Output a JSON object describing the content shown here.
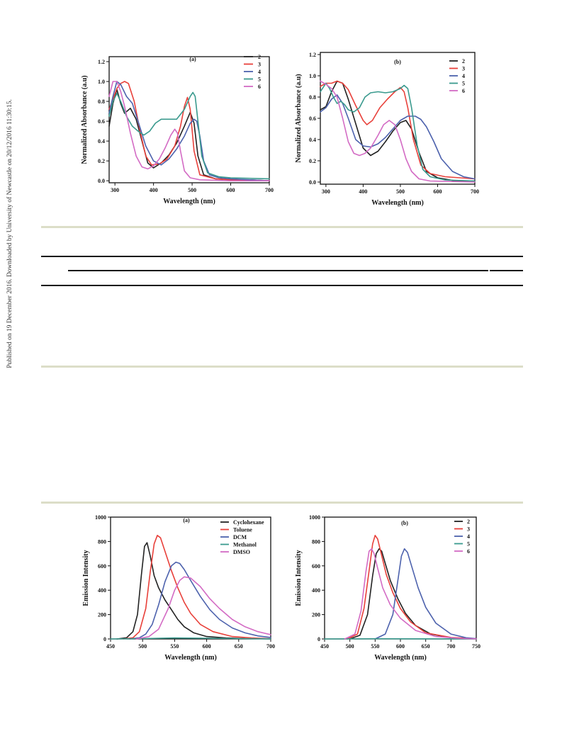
{
  "sidebar_text": "Published on 19 December 2016. Downloaded by University of Newcastle on 20/12/2016 11:30:15.",
  "chart_data": [
    {
      "type": "line",
      "panel_label": "(a)",
      "xlabel": "Wavelength (nm)",
      "ylabel": "Normalized Absorbance (a.u)",
      "xlim": [
        285,
        700
      ],
      "ylim": [
        -0.02,
        1.25
      ],
      "xticks": [
        300,
        400,
        500,
        600,
        700
      ],
      "yticks": [
        0.0,
        0.2,
        0.4,
        0.6,
        0.8,
        1.0,
        1.2
      ],
      "ytick_decimals": 1,
      "legend_position": "top-right",
      "series": [
        {
          "name": "2",
          "color": "#222222",
          "x": [
            285,
            295,
            305,
            315,
            325,
            340,
            355,
            370,
            385,
            400,
            420,
            440,
            460,
            480,
            495,
            505,
            515,
            530,
            560,
            600,
            650,
            700
          ],
          "y": [
            0.55,
            0.78,
            0.92,
            0.78,
            0.68,
            0.73,
            0.62,
            0.4,
            0.18,
            0.13,
            0.18,
            0.26,
            0.38,
            0.55,
            0.69,
            0.58,
            0.25,
            0.06,
            0.02,
            0.01,
            0.01,
            0.0
          ]
        },
        {
          "name": "3",
          "color": "#e8403a",
          "x": [
            285,
            295,
            305,
            315,
            325,
            335,
            350,
            365,
            380,
            395,
            415,
            435,
            455,
            470,
            480,
            488,
            495,
            505,
            520,
            560,
            600,
            700
          ],
          "y": [
            0.72,
            0.82,
            0.93,
            0.98,
            1.0,
            0.98,
            0.8,
            0.5,
            0.25,
            0.16,
            0.17,
            0.22,
            0.35,
            0.55,
            0.75,
            0.84,
            0.72,
            0.3,
            0.06,
            0.02,
            0.01,
            0.0
          ]
        },
        {
          "name": "4",
          "color": "#4d62ad",
          "x": [
            285,
            295,
            305,
            315,
            330,
            345,
            360,
            380,
            400,
            420,
            440,
            460,
            480,
            495,
            505,
            512,
            520,
            530,
            545,
            570,
            600,
            650,
            700
          ],
          "y": [
            0.68,
            0.85,
            1.0,
            0.97,
            0.85,
            0.78,
            0.6,
            0.35,
            0.2,
            0.16,
            0.22,
            0.32,
            0.45,
            0.58,
            0.62,
            0.6,
            0.45,
            0.2,
            0.06,
            0.03,
            0.02,
            0.01,
            0.0
          ]
        },
        {
          "name": "5",
          "color": "#3a9a8e",
          "x": [
            285,
            295,
            305,
            315,
            330,
            345,
            360,
            375,
            390,
            405,
            420,
            440,
            460,
            480,
            495,
            502,
            508,
            515,
            525,
            540,
            570,
            600,
            700
          ],
          "y": [
            0.65,
            0.8,
            0.88,
            0.8,
            0.65,
            0.55,
            0.5,
            0.46,
            0.5,
            0.58,
            0.62,
            0.62,
            0.62,
            0.72,
            0.85,
            0.89,
            0.85,
            0.6,
            0.25,
            0.08,
            0.04,
            0.03,
            0.02
          ]
        },
        {
          "name": "6",
          "color": "#d36bc4",
          "x": [
            285,
            295,
            305,
            315,
            325,
            340,
            355,
            370,
            385,
            400,
            415,
            430,
            445,
            455,
            462,
            470,
            480,
            495,
            520,
            600,
            700
          ],
          "y": [
            0.85,
            1.0,
            1.0,
            0.9,
            0.75,
            0.48,
            0.25,
            0.14,
            0.12,
            0.15,
            0.22,
            0.33,
            0.46,
            0.52,
            0.48,
            0.3,
            0.1,
            0.03,
            0.01,
            0.0,
            0.0
          ]
        }
      ]
    },
    {
      "type": "line",
      "panel_label": "(b)",
      "xlabel": "Wavelength (nm)",
      "ylabel": "Normalized Absorbance (a.u)",
      "xlim": [
        285,
        700
      ],
      "ylim": [
        -0.02,
        1.22
      ],
      "xticks": [
        300,
        400,
        500,
        600,
        700
      ],
      "yticks": [
        0.0,
        0.2,
        0.4,
        0.6,
        0.8,
        1.0,
        1.2
      ],
      "ytick_decimals": 1,
      "legend_position": "top-right",
      "series": [
        {
          "name": "2",
          "color": "#222222",
          "x": [
            285,
            300,
            315,
            330,
            345,
            360,
            380,
            400,
            420,
            440,
            460,
            480,
            500,
            515,
            530,
            550,
            570,
            600,
            650,
            700
          ],
          "y": [
            0.68,
            0.71,
            0.85,
            0.95,
            0.93,
            0.78,
            0.55,
            0.32,
            0.25,
            0.29,
            0.38,
            0.48,
            0.56,
            0.58,
            0.5,
            0.28,
            0.1,
            0.04,
            0.01,
            0.01
          ]
        },
        {
          "name": "3",
          "color": "#e8403a",
          "x": [
            285,
            300,
            315,
            330,
            345,
            360,
            380,
            400,
            410,
            425,
            445,
            465,
            485,
            500,
            510,
            520,
            535,
            555,
            580,
            620,
            700
          ],
          "y": [
            0.9,
            0.93,
            0.93,
            0.95,
            0.93,
            0.87,
            0.72,
            0.58,
            0.54,
            0.58,
            0.7,
            0.78,
            0.85,
            0.89,
            0.85,
            0.7,
            0.4,
            0.16,
            0.08,
            0.05,
            0.03
          ]
        },
        {
          "name": "4",
          "color": "#4d62ad",
          "x": [
            285,
            300,
            315,
            330,
            345,
            360,
            380,
            400,
            420,
            440,
            460,
            480,
            500,
            520,
            540,
            555,
            570,
            590,
            610,
            640,
            670,
            700
          ],
          "y": [
            0.66,
            0.7,
            0.78,
            0.82,
            0.74,
            0.6,
            0.4,
            0.34,
            0.33,
            0.36,
            0.42,
            0.5,
            0.58,
            0.62,
            0.62,
            0.59,
            0.52,
            0.38,
            0.22,
            0.1,
            0.05,
            0.03
          ]
        },
        {
          "name": "5",
          "color": "#3a9a8e",
          "x": [
            285,
            300,
            310,
            320,
            330,
            340,
            350,
            360,
            375,
            390,
            405,
            420,
            440,
            460,
            480,
            500,
            510,
            520,
            530,
            545,
            560,
            580,
            620,
            700
          ],
          "y": [
            0.85,
            0.93,
            0.88,
            0.8,
            0.74,
            0.76,
            0.73,
            0.68,
            0.66,
            0.7,
            0.8,
            0.84,
            0.85,
            0.84,
            0.85,
            0.88,
            0.91,
            0.88,
            0.7,
            0.35,
            0.12,
            0.05,
            0.02,
            0.01
          ]
        },
        {
          "name": "6",
          "color": "#d36bc4",
          "x": [
            285,
            300,
            315,
            330,
            345,
            360,
            375,
            390,
            405,
            420,
            440,
            455,
            470,
            485,
            500,
            515,
            530,
            550,
            580,
            700
          ],
          "y": [
            0.95,
            0.92,
            0.88,
            0.8,
            0.6,
            0.38,
            0.27,
            0.25,
            0.27,
            0.32,
            0.44,
            0.54,
            0.58,
            0.54,
            0.4,
            0.22,
            0.1,
            0.03,
            0.01,
            0.0
          ]
        }
      ]
    },
    {
      "type": "line",
      "panel_label": "(a)",
      "xlabel": "Wavelength (nm)",
      "ylabel": "Emission Intensity",
      "xlim": [
        450,
        700
      ],
      "ylim": [
        0,
        1000
      ],
      "xticks": [
        450,
        500,
        550,
        600,
        650,
        700
      ],
      "yticks": [
        0,
        200,
        400,
        600,
        800,
        1000
      ],
      "ytick_decimals": 0,
      "legend_position": "top-right",
      "series": [
        {
          "name": "Cyclohexane",
          "color": "#222222",
          "x": [
            460,
            475,
            485,
            492,
            498,
            503,
            507,
            512,
            518,
            525,
            535,
            545,
            555,
            565,
            580,
            600,
            630,
            660,
            700
          ],
          "y": [
            0,
            10,
            60,
            200,
            520,
            760,
            790,
            680,
            520,
            420,
            320,
            240,
            160,
            100,
            50,
            20,
            8,
            3,
            1
          ]
        },
        {
          "name": "Toluene",
          "color": "#e8403a",
          "x": [
            470,
            485,
            495,
            505,
            512,
            518,
            523,
            528,
            535,
            545,
            555,
            565,
            575,
            590,
            610,
            640,
            670,
            700
          ],
          "y": [
            0,
            10,
            60,
            250,
            550,
            780,
            850,
            830,
            720,
            560,
            420,
            300,
            210,
            120,
            60,
            20,
            8,
            2
          ]
        },
        {
          "name": "DCM",
          "color": "#4d62ad",
          "x": [
            480,
            495,
            505,
            515,
            525,
            535,
            545,
            552,
            558,
            565,
            575,
            590,
            605,
            620,
            640,
            660,
            680,
            700
          ],
          "y": [
            0,
            10,
            40,
            120,
            280,
            470,
            600,
            630,
            620,
            570,
            480,
            350,
            240,
            160,
            90,
            50,
            25,
            12
          ]
        },
        {
          "name": "Methanol",
          "color": "#3a9a8e",
          "x": [
            450,
            500,
            550,
            600,
            650,
            700
          ],
          "y": [
            0,
            3,
            8,
            6,
            3,
            1
          ]
        },
        {
          "name": "DMSO",
          "color": "#d36bc4",
          "x": [
            490,
            510,
            525,
            540,
            550,
            558,
            565,
            575,
            590,
            605,
            620,
            640,
            660,
            680,
            700
          ],
          "y": [
            0,
            20,
            80,
            250,
            400,
            480,
            510,
            500,
            430,
            330,
            250,
            160,
            100,
            60,
            35
          ]
        }
      ]
    },
    {
      "type": "line",
      "panel_label": "(b)",
      "xlabel": "Wavelength (nm)",
      "ylabel": "Emission Intensity",
      "xlim": [
        450,
        750
      ],
      "ylim": [
        0,
        1000
      ],
      "xticks": [
        450,
        500,
        550,
        600,
        650,
        700,
        750
      ],
      "yticks": [
        0,
        200,
        400,
        600,
        800,
        1000
      ],
      "ytick_decimals": 0,
      "legend_position": "top-right",
      "series": [
        {
          "name": "2",
          "color": "#222222",
          "x": [
            500,
            520,
            535,
            545,
            552,
            558,
            563,
            570,
            580,
            595,
            610,
            630,
            660,
            700,
            750
          ],
          "y": [
            0,
            30,
            200,
            520,
            700,
            740,
            720,
            620,
            480,
            330,
            210,
            110,
            40,
            10,
            2
          ]
        },
        {
          "name": "3",
          "color": "#e8403a",
          "x": [
            495,
            515,
            528,
            538,
            545,
            550,
            555,
            562,
            572,
            585,
            600,
            620,
            650,
            700,
            750
          ],
          "y": [
            0,
            40,
            250,
            560,
            780,
            850,
            820,
            700,
            530,
            380,
            250,
            140,
            50,
            12,
            3
          ]
        },
        {
          "name": "4",
          "color": "#4d62ad",
          "x": [
            550,
            570,
            585,
            595,
            602,
            608,
            614,
            622,
            635,
            650,
            670,
            700,
            730,
            750
          ],
          "y": [
            0,
            40,
            200,
            480,
            680,
            740,
            710,
            600,
            420,
            260,
            130,
            40,
            10,
            3
          ]
        },
        {
          "name": "5",
          "color": "#3a9a8e",
          "x": [
            450,
            550,
            750
          ],
          "y": [
            0,
            2,
            0
          ]
        },
        {
          "name": "6",
          "color": "#d36bc4",
          "x": [
            490,
            510,
            522,
            532,
            538,
            543,
            548,
            555,
            565,
            580,
            600,
            630,
            670,
            720,
            750
          ],
          "y": [
            0,
            40,
            230,
            560,
            720,
            740,
            700,
            580,
            420,
            280,
            170,
            70,
            20,
            4,
            1
          ]
        }
      ]
    }
  ]
}
